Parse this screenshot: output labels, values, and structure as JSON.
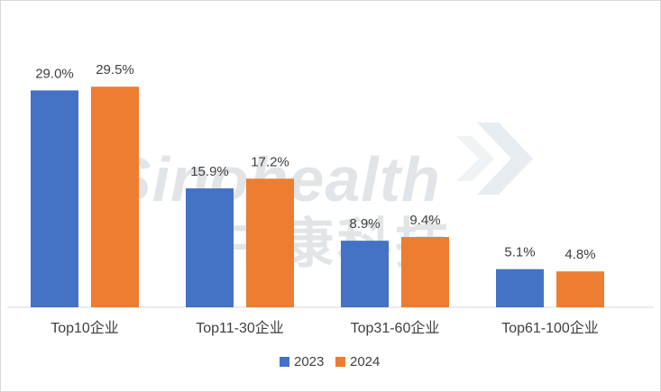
{
  "chart_data": {
    "type": "bar",
    "categories": [
      "Top10企业",
      "Top11-30企业",
      "Top31-60企业",
      "Top61-100企业"
    ],
    "series": [
      {
        "name": "2023",
        "values": [
          29.0,
          15.9,
          8.9,
          5.1
        ],
        "labels": [
          "29.0%",
          "15.9%",
          "8.9%",
          "5.1%"
        ],
        "color": "#4472c4"
      },
      {
        "name": "2024",
        "values": [
          29.5,
          17.2,
          9.4,
          4.8
        ],
        "labels": [
          "29.5%",
          "17.2%",
          "9.4%",
          "4.8%"
        ],
        "color": "#ed7d31"
      }
    ],
    "ylim": [
      0,
      33.5
    ],
    "grid": false,
    "legend_position": "bottom"
  },
  "watermark": {
    "brand": "Sinohealth",
    "brand_cn": "中康科技"
  }
}
